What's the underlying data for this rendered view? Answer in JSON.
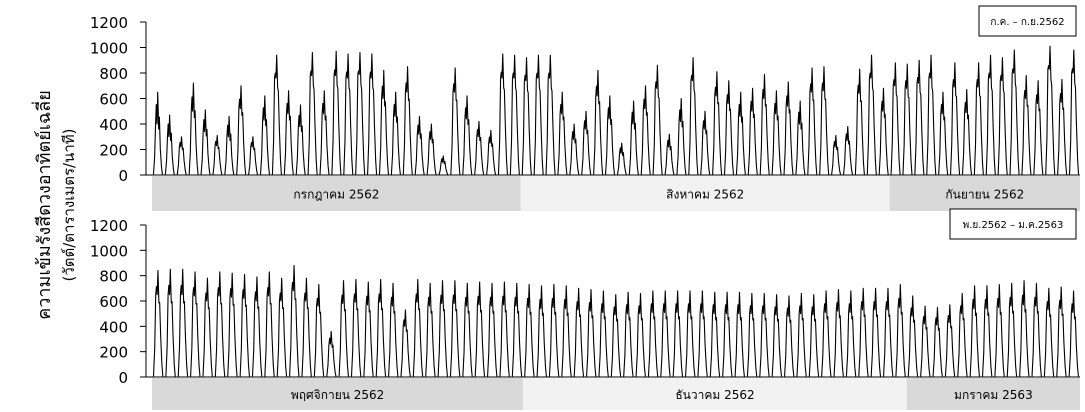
{
  "chart_data": {
    "type": "line",
    "ylabel_line1": "ความเข้มรังสีดวงอาทิตย์เฉลี่ย",
    "ylabel_line2": "(วัตต์/ตารางเมตร/นาที)",
    "series_color": "#000000",
    "panels": [
      {
        "period": "ก.ค. – ก.ย.2562",
        "ylim": [
          0,
          1200
        ],
        "yticks": [
          "0",
          "200",
          "400",
          "600",
          "800",
          "1000",
          "1200"
        ],
        "months": [
          {
            "label": "กรกฎาคม 2562",
            "days": 31,
            "color": "#d9d9d9"
          },
          {
            "label": "สิงหาคม 2562",
            "days": 31,
            "color": "#f2f2f2"
          },
          {
            "label": "กันยายน 2562",
            "days": 16,
            "color": "#d9d9d9"
          }
        ],
        "daily_peaks": [
          650,
          470,
          300,
          720,
          510,
          310,
          460,
          700,
          300,
          620,
          940,
          660,
          550,
          960,
          660,
          970,
          950,
          960,
          950,
          820,
          650,
          850,
          460,
          400,
          150,
          840,
          620,
          420,
          350,
          950,
          940,
          920,
          940,
          940,
          650,
          400,
          500,
          820,
          620,
          250,
          580,
          700,
          860,
          320,
          600,
          920,
          500,
          810,
          740,
          650,
          680,
          790,
          660,
          730,
          580,
          840,
          850,
          310,
          380,
          830,
          940,
          680,
          880,
          870,
          900,
          940,
          650,
          880,
          670,
          880,
          940,
          920,
          980,
          780,
          740,
          1010,
          750,
          980
        ],
        "daily_minor": [
          400,
          300,
          220,
          500,
          340,
          230,
          300,
          520,
          220,
          430,
          760,
          480,
          380,
          780,
          480,
          780,
          760,
          790,
          760,
          600,
          460,
          650,
          320,
          280,
          100,
          650,
          440,
          300,
          250,
          760,
          760,
          740,
          760,
          760,
          480,
          280,
          360,
          620,
          440,
          170,
          400,
          520,
          680,
          220,
          420,
          740,
          360,
          620,
          560,
          460,
          500,
          600,
          480,
          540,
          400,
          650,
          660,
          220,
          270,
          640,
          760,
          500,
          700,
          680,
          720,
          760,
          480,
          690,
          490,
          690,
          760,
          740,
          800,
          600,
          560,
          830,
          570,
          800
        ]
      },
      {
        "period": "พ.ย.2562 – ม.ค.2563",
        "ylim": [
          0,
          1200
        ],
        "yticks": [
          "0",
          "200",
          "400",
          "600",
          "800",
          "1000",
          "1200"
        ],
        "months": [
          {
            "label": "พฤศจิกายน 2562",
            "days": 30,
            "color": "#d9d9d9"
          },
          {
            "label": "ธันวาคม 2562",
            "days": 31,
            "color": "#f2f2f2"
          },
          {
            "label": "มกราคม 2563",
            "days": 14,
            "color": "#d9d9d9"
          }
        ],
        "daily_peaks": [
          840,
          850,
          850,
          830,
          780,
          830,
          820,
          810,
          790,
          830,
          780,
          880,
          780,
          730,
          360,
          760,
          770,
          750,
          770,
          740,
          530,
          770,
          740,
          760,
          760,
          740,
          750,
          740,
          750,
          740,
          730,
          720,
          730,
          720,
          700,
          690,
          680,
          650,
          670,
          660,
          680,
          680,
          680,
          680,
          680,
          670,
          670,
          670,
          660,
          660,
          650,
          640,
          660,
          650,
          680,
          690,
          680,
          700,
          700,
          700,
          730,
          640,
          560,
          550,
          570,
          660,
          720,
          720,
          730,
          740,
          760,
          740,
          700,
          710,
          680
        ],
        "daily_minor": [
          650,
          650,
          650,
          640,
          600,
          640,
          630,
          620,
          600,
          640,
          600,
          680,
          600,
          560,
          260,
          580,
          590,
          570,
          590,
          560,
          400,
          590,
          560,
          580,
          580,
          560,
          570,
          560,
          570,
          560,
          550,
          540,
          550,
          540,
          530,
          520,
          510,
          490,
          500,
          500,
          510,
          510,
          510,
          510,
          510,
          500,
          500,
          500,
          500,
          500,
          490,
          480,
          500,
          490,
          510,
          520,
          510,
          530,
          530,
          530,
          550,
          480,
          420,
          410,
          430,
          500,
          540,
          540,
          550,
          560,
          570,
          560,
          530,
          540,
          510
        ]
      }
    ]
  }
}
